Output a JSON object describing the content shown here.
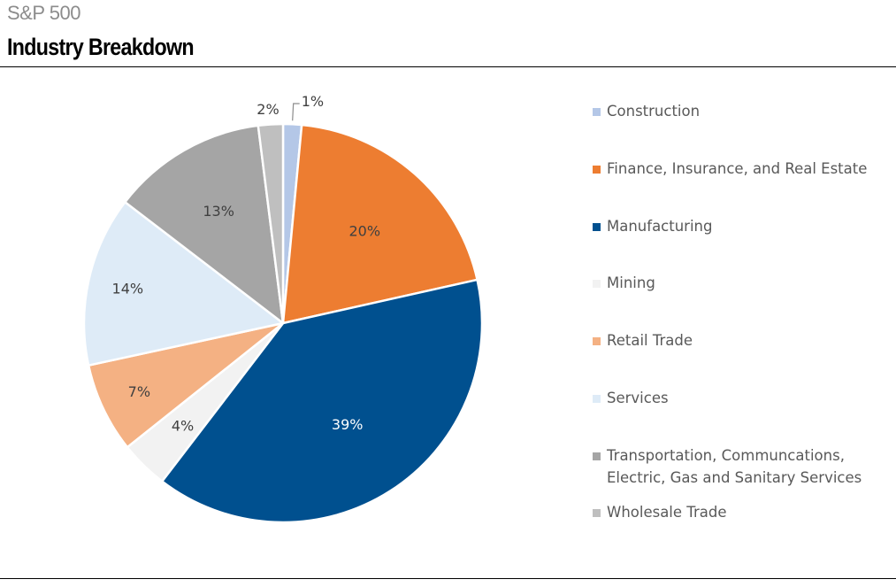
{
  "header": {
    "subtitle": "S&P 500",
    "title": "Industry Breakdown"
  },
  "chart_data": {
    "type": "pie",
    "title": "Industry Breakdown",
    "subtitle": "S&P 500",
    "start_angle": "12 o'clock, clockwise",
    "legend_position": "right",
    "slices": [
      {
        "name": "Construction",
        "value": 1.5,
        "label": "1%",
        "color": "#B4C7E7",
        "label_color": "#404040"
      },
      {
        "name": "Finance, Insurance, and Real Estate",
        "value": 20.0,
        "label": "20%",
        "color": "#ED7D31",
        "label_color": "#404040"
      },
      {
        "name": "Manufacturing",
        "value": 38.9,
        "label": "39%",
        "color": "#00508F",
        "label_color": "#FFFFFF"
      },
      {
        "name": "Mining",
        "value": 3.9,
        "label": "4%",
        "color": "#F2F2F2",
        "label_color": "#404040"
      },
      {
        "name": "Retail Trade",
        "value": 7.3,
        "label": "7%",
        "color": "#F4B183",
        "label_color": "#404040"
      },
      {
        "name": "Services",
        "value": 13.8,
        "label": "14%",
        "color": "#DEEBF7",
        "label_color": "#404040"
      },
      {
        "name": "Transportation, Communcations,\nElectric, Gas and Sanitary Services",
        "value": 12.6,
        "label": "13%",
        "color": "#A5A5A5",
        "label_color": "#404040"
      },
      {
        "name": "Wholesale Trade",
        "value": 2.0,
        "label": "2%",
        "color": "#BFBFBF",
        "label_color": "#404040"
      }
    ]
  }
}
